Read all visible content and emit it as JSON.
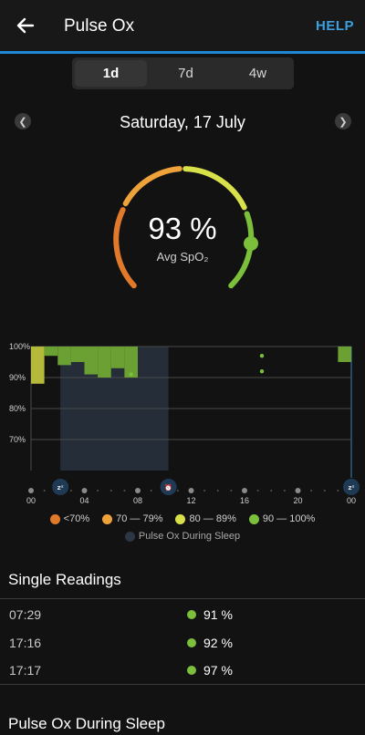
{
  "appbar": {
    "title": "Pulse Ox",
    "help": "HELP",
    "back_icon": "arrow-left-icon"
  },
  "tabs": [
    {
      "label": "1d",
      "active": true
    },
    {
      "label": "7d",
      "active": false
    },
    {
      "label": "4w",
      "active": false
    }
  ],
  "date_nav": {
    "date": "Saturday, 17 July",
    "prev_icon": "chevron-left-icon",
    "next_icon": "chevron-right-icon"
  },
  "gauge": {
    "value": "93 %",
    "label": "Avg SpO₂",
    "level_percent": 93,
    "colors": {
      "low": "#e07a2a",
      "mid": "#f0a23a",
      "high": "#d8e04a",
      "best": "#7bbf3a"
    }
  },
  "chart_data": {
    "type": "bar",
    "y_tick_labels": [
      "100%",
      "90%",
      "80%",
      "70%"
    ],
    "x_tick_labels": [
      "00",
      "04",
      "08",
      "12",
      "16",
      "20",
      "00"
    ],
    "ylim": [
      60,
      100
    ],
    "xlim_hours": [
      0,
      24
    ],
    "sleep_window_hours": [
      2.2,
      10.3
    ],
    "icons": [
      "sleep-icon",
      "alarm-clock-icon",
      "sleep-icon"
    ],
    "bars": [
      {
        "start": 0.0,
        "end": 1.0,
        "value": 88,
        "color": "#b5b93a"
      },
      {
        "start": 1.0,
        "end": 2.0,
        "value": 97,
        "color": "#6ba032"
      },
      {
        "start": 2.0,
        "end": 3.0,
        "value": 94,
        "color": "#6ba032"
      },
      {
        "start": 3.0,
        "end": 4.0,
        "value": 95,
        "color": "#6ba032"
      },
      {
        "start": 4.0,
        "end": 5.0,
        "value": 91,
        "color": "#6ba032"
      },
      {
        "start": 5.0,
        "end": 6.0,
        "value": 90,
        "color": "#6ba032"
      },
      {
        "start": 6.0,
        "end": 7.0,
        "value": 93,
        "color": "#6ba032"
      },
      {
        "start": 7.0,
        "end": 8.0,
        "value": 90,
        "color": "#6ba032"
      },
      {
        "start": 23.0,
        "end": 24.0,
        "value": 95,
        "color": "#6ba032"
      }
    ],
    "points": [
      {
        "x": 7.5,
        "y": 91
      },
      {
        "x": 17.3,
        "y": 97
      },
      {
        "x": 17.3,
        "y": 92
      }
    ]
  },
  "legend": [
    {
      "label": "<70%",
      "color": "#e07a2a"
    },
    {
      "label": "70 — 79%",
      "color": "#f0a23a"
    },
    {
      "label": "80 — 89%",
      "color": "#d8e04a"
    },
    {
      "label": "90 — 100%",
      "color": "#7bbf3a"
    }
  ],
  "legend_sleep": "Pulse Ox During Sleep",
  "single_readings": {
    "title": "Single Readings",
    "rows": [
      {
        "time": "07:29",
        "value": "91 %"
      },
      {
        "time": "17:16",
        "value": "92 %"
      },
      {
        "time": "17:17",
        "value": "97 %"
      }
    ]
  },
  "sleep_section": {
    "title": "Pulse Ox During Sleep"
  }
}
